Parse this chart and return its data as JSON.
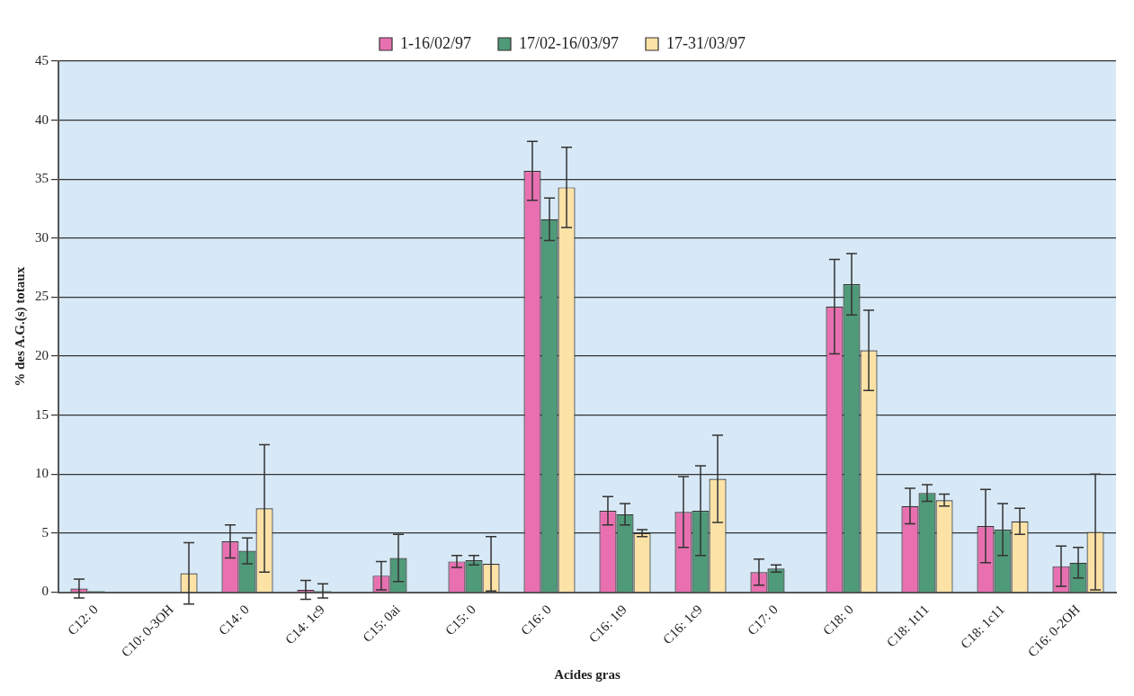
{
  "chart_data": {
    "type": "bar",
    "xlabel": "Acides gras",
    "ylabel": "% des A.G.(s) totaux",
    "categories": [
      "C12: 0",
      "C10: 0-3OH",
      "C14: 0",
      "C14: 1c9",
      "C15: 0ai",
      "C15: 0",
      "C16: 0",
      "C16: 1t9",
      "C16: 1c9",
      "C17: 0",
      "C18: 0",
      "C18: 1t11",
      "C18: 1c11",
      "C16: 0-2OH"
    ],
    "series": [
      {
        "name": "1-16/02/97",
        "color": "#e870b0",
        "values": [
          0.3,
          null,
          4.3,
          0.2,
          1.4,
          2.6,
          35.7,
          6.9,
          6.8,
          1.7,
          24.2,
          7.3,
          5.6,
          2.2
        ],
        "errors": [
          0.8,
          null,
          1.4,
          0.8,
          1.2,
          0.5,
          2.5,
          1.2,
          3.0,
          1.1,
          4.0,
          1.5,
          3.1,
          1.7
        ]
      },
      {
        "name": "17/02-16/03/97",
        "color": "#4f9a78",
        "values": [
          0.1,
          null,
          3.5,
          0.1,
          2.9,
          2.7,
          31.6,
          6.6,
          6.9,
          2.0,
          26.1,
          8.4,
          5.3,
          2.5
        ],
        "errors": [
          null,
          null,
          1.1,
          0.6,
          2.0,
          0.4,
          1.8,
          0.9,
          3.8,
          0.3,
          2.6,
          0.7,
          2.2,
          1.3
        ]
      },
      {
        "name": "17-31/03/97",
        "color": "#fde2a6",
        "values": [
          null,
          1.6,
          7.1,
          null,
          null,
          2.4,
          34.3,
          5.0,
          9.6,
          null,
          20.5,
          7.8,
          6.0,
          5.1
        ],
        "errors": [
          null,
          2.6,
          5.4,
          null,
          null,
          2.3,
          3.4,
          0.3,
          3.7,
          null,
          3.4,
          0.5,
          1.1,
          4.9
        ]
      }
    ],
    "ylim": [
      0,
      45
    ],
    "yticks": [
      0,
      5,
      10,
      15,
      20,
      25,
      30,
      35,
      40,
      45
    ],
    "grid": "y",
    "legend": "top"
  }
}
